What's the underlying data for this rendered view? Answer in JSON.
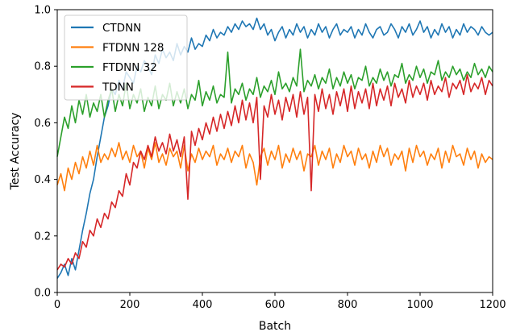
{
  "chart_data": {
    "type": "line",
    "xlabel": "Batch",
    "ylabel": "Test Accuracy",
    "xlim": [
      0,
      1200
    ],
    "ylim": [
      0.0,
      1.0
    ],
    "xticks": [
      0,
      200,
      400,
      600,
      800,
      1000,
      1200
    ],
    "xtick_labels": [
      "0",
      "200",
      "400",
      "600",
      "800",
      "1000",
      "1200"
    ],
    "yticks": [
      0.0,
      0.2,
      0.4,
      0.6,
      0.8,
      1.0
    ],
    "ytick_labels": [
      "0.0",
      "0.2",
      "0.4",
      "0.6",
      "0.8",
      "1.0"
    ],
    "grid": false,
    "legend_position": "top-left",
    "series": [
      {
        "name": "CTDNN",
        "color": "#1f77b4",
        "x": [
          0,
          10,
          20,
          30,
          40,
          50,
          60,
          70,
          80,
          90,
          100,
          110,
          120,
          130,
          140,
          150,
          160,
          170,
          180,
          190,
          200,
          210,
          220,
          230,
          240,
          250,
          260,
          270,
          280,
          290,
          300,
          310,
          320,
          330,
          340,
          350,
          360,
          370,
          380,
          390,
          400,
          410,
          420,
          430,
          440,
          450,
          460,
          470,
          480,
          490,
          500,
          510,
          520,
          530,
          540,
          550,
          560,
          570,
          580,
          590,
          600,
          610,
          620,
          630,
          640,
          650,
          660,
          670,
          680,
          690,
          700,
          710,
          720,
          730,
          740,
          750,
          760,
          770,
          780,
          790,
          800,
          810,
          820,
          830,
          840,
          850,
          860,
          870,
          880,
          890,
          900,
          910,
          920,
          930,
          940,
          950,
          960,
          970,
          980,
          990,
          1000,
          1010,
          1020,
          1030,
          1040,
          1050,
          1060,
          1070,
          1080,
          1090,
          1100,
          1110,
          1120,
          1130,
          1140,
          1150,
          1160,
          1170,
          1180,
          1190,
          1200
        ],
        "y": [
          0.05,
          0.07,
          0.1,
          0.06,
          0.12,
          0.08,
          0.15,
          0.22,
          0.28,
          0.35,
          0.4,
          0.48,
          0.55,
          0.62,
          0.66,
          0.72,
          0.7,
          0.75,
          0.72,
          0.78,
          0.76,
          0.74,
          0.8,
          0.78,
          0.82,
          0.8,
          0.77,
          0.84,
          0.81,
          0.86,
          0.83,
          0.85,
          0.82,
          0.88,
          0.84,
          0.87,
          0.85,
          0.9,
          0.86,
          0.88,
          0.87,
          0.91,
          0.89,
          0.93,
          0.9,
          0.92,
          0.91,
          0.94,
          0.92,
          0.95,
          0.93,
          0.96,
          0.94,
          0.95,
          0.93,
          0.97,
          0.93,
          0.95,
          0.91,
          0.93,
          0.89,
          0.92,
          0.94,
          0.9,
          0.93,
          0.91,
          0.95,
          0.92,
          0.94,
          0.9,
          0.93,
          0.91,
          0.95,
          0.92,
          0.94,
          0.9,
          0.93,
          0.95,
          0.91,
          0.93,
          0.92,
          0.94,
          0.9,
          0.93,
          0.91,
          0.95,
          0.92,
          0.9,
          0.93,
          0.94,
          0.91,
          0.92,
          0.95,
          0.93,
          0.9,
          0.94,
          0.92,
          0.95,
          0.91,
          0.93,
          0.96,
          0.92,
          0.94,
          0.9,
          0.93,
          0.91,
          0.95,
          0.92,
          0.94,
          0.9,
          0.93,
          0.91,
          0.95,
          0.92,
          0.94,
          0.93,
          0.91,
          0.94,
          0.92,
          0.91,
          0.92
        ]
      },
      {
        "name": "FTDNN 128",
        "color": "#ff7f0e",
        "x": [
          0,
          10,
          20,
          30,
          40,
          50,
          60,
          70,
          80,
          90,
          100,
          110,
          120,
          130,
          140,
          150,
          160,
          170,
          180,
          190,
          200,
          210,
          220,
          230,
          240,
          250,
          260,
          270,
          280,
          290,
          300,
          310,
          320,
          330,
          340,
          350,
          360,
          370,
          380,
          390,
          400,
          410,
          420,
          430,
          440,
          450,
          460,
          470,
          480,
          490,
          500,
          510,
          520,
          530,
          540,
          550,
          560,
          570,
          580,
          590,
          600,
          610,
          620,
          630,
          640,
          650,
          660,
          670,
          680,
          690,
          700,
          710,
          720,
          730,
          740,
          750,
          760,
          770,
          780,
          790,
          800,
          810,
          820,
          830,
          840,
          850,
          860,
          870,
          880,
          890,
          900,
          910,
          920,
          930,
          940,
          950,
          960,
          970,
          980,
          990,
          1000,
          1010,
          1020,
          1030,
          1040,
          1050,
          1060,
          1070,
          1080,
          1090,
          1100,
          1110,
          1120,
          1130,
          1140,
          1150,
          1160,
          1170,
          1180,
          1190,
          1200
        ],
        "y": [
          0.38,
          0.42,
          0.36,
          0.44,
          0.4,
          0.46,
          0.42,
          0.48,
          0.44,
          0.5,
          0.45,
          0.52,
          0.46,
          0.49,
          0.47,
          0.51,
          0.48,
          0.53,
          0.47,
          0.5,
          0.46,
          0.52,
          0.48,
          0.5,
          0.44,
          0.51,
          0.47,
          0.53,
          0.46,
          0.49,
          0.45,
          0.51,
          0.48,
          0.5,
          0.44,
          0.52,
          0.43,
          0.49,
          0.46,
          0.51,
          0.47,
          0.5,
          0.48,
          0.52,
          0.45,
          0.49,
          0.47,
          0.51,
          0.46,
          0.5,
          0.48,
          0.52,
          0.44,
          0.49,
          0.46,
          0.38,
          0.48,
          0.51,
          0.45,
          0.5,
          0.47,
          0.52,
          0.44,
          0.49,
          0.46,
          0.51,
          0.47,
          0.5,
          0.43,
          0.49,
          0.48,
          0.52,
          0.45,
          0.5,
          0.47,
          0.51,
          0.44,
          0.49,
          0.46,
          0.52,
          0.48,
          0.5,
          0.45,
          0.51,
          0.47,
          0.49,
          0.44,
          0.5,
          0.46,
          0.52,
          0.48,
          0.51,
          0.45,
          0.49,
          0.47,
          0.5,
          0.43,
          0.51,
          0.46,
          0.52,
          0.48,
          0.5,
          0.45,
          0.49,
          0.47,
          0.51,
          0.44,
          0.5,
          0.46,
          0.52,
          0.48,
          0.49,
          0.45,
          0.51,
          0.47,
          0.5,
          0.44,
          0.49,
          0.46,
          0.48,
          0.47
        ]
      },
      {
        "name": "FTDNN 32",
        "color": "#2ca02c",
        "x": [
          0,
          10,
          20,
          30,
          40,
          50,
          60,
          70,
          80,
          90,
          100,
          110,
          120,
          130,
          140,
          150,
          160,
          170,
          180,
          190,
          200,
          210,
          220,
          230,
          240,
          250,
          260,
          270,
          280,
          290,
          300,
          310,
          320,
          330,
          340,
          350,
          360,
          370,
          380,
          390,
          400,
          410,
          420,
          430,
          440,
          450,
          460,
          470,
          480,
          490,
          500,
          510,
          520,
          530,
          540,
          550,
          560,
          570,
          580,
          590,
          600,
          610,
          620,
          630,
          640,
          650,
          660,
          670,
          680,
          690,
          700,
          710,
          720,
          730,
          740,
          750,
          760,
          770,
          780,
          790,
          800,
          810,
          820,
          830,
          840,
          850,
          860,
          870,
          880,
          890,
          900,
          910,
          920,
          930,
          940,
          950,
          960,
          970,
          980,
          990,
          1000,
          1010,
          1020,
          1030,
          1040,
          1050,
          1060,
          1070,
          1080,
          1090,
          1100,
          1110,
          1120,
          1130,
          1140,
          1150,
          1160,
          1170,
          1180,
          1190,
          1200
        ],
        "y": [
          0.48,
          0.55,
          0.62,
          0.58,
          0.66,
          0.6,
          0.68,
          0.63,
          0.7,
          0.62,
          0.67,
          0.64,
          0.7,
          0.62,
          0.68,
          0.72,
          0.64,
          0.7,
          0.66,
          0.74,
          0.65,
          0.7,
          0.67,
          0.72,
          0.64,
          0.69,
          0.66,
          0.73,
          0.65,
          0.7,
          0.68,
          0.74,
          0.66,
          0.71,
          0.67,
          0.72,
          0.65,
          0.7,
          0.68,
          0.75,
          0.66,
          0.71,
          0.68,
          0.73,
          0.67,
          0.7,
          0.69,
          0.85,
          0.67,
          0.72,
          0.7,
          0.74,
          0.68,
          0.72,
          0.7,
          0.76,
          0.69,
          0.73,
          0.71,
          0.75,
          0.7,
          0.78,
          0.72,
          0.74,
          0.71,
          0.76,
          0.73,
          0.86,
          0.71,
          0.75,
          0.73,
          0.77,
          0.72,
          0.76,
          0.74,
          0.79,
          0.72,
          0.76,
          0.73,
          0.78,
          0.74,
          0.77,
          0.72,
          0.76,
          0.75,
          0.8,
          0.73,
          0.76,
          0.74,
          0.79,
          0.75,
          0.78,
          0.73,
          0.77,
          0.76,
          0.81,
          0.74,
          0.77,
          0.75,
          0.8,
          0.76,
          0.79,
          0.74,
          0.78,
          0.77,
          0.82,
          0.75,
          0.78,
          0.76,
          0.8,
          0.77,
          0.79,
          0.75,
          0.78,
          0.76,
          0.81,
          0.77,
          0.79,
          0.76,
          0.8,
          0.78
        ]
      },
      {
        "name": "TDNN",
        "color": "#d62728",
        "x": [
          0,
          10,
          20,
          30,
          40,
          50,
          60,
          70,
          80,
          90,
          100,
          110,
          120,
          130,
          140,
          150,
          160,
          170,
          180,
          190,
          200,
          210,
          220,
          230,
          240,
          250,
          260,
          270,
          280,
          290,
          300,
          310,
          320,
          330,
          340,
          350,
          360,
          370,
          380,
          390,
          400,
          410,
          420,
          430,
          440,
          450,
          460,
          470,
          480,
          490,
          500,
          510,
          520,
          530,
          540,
          550,
          560,
          570,
          580,
          590,
          600,
          610,
          620,
          630,
          640,
          650,
          660,
          670,
          680,
          690,
          700,
          710,
          720,
          730,
          740,
          750,
          760,
          770,
          780,
          790,
          800,
          810,
          820,
          830,
          840,
          850,
          860,
          870,
          880,
          890,
          900,
          910,
          920,
          930,
          940,
          950,
          960,
          970,
          980,
          990,
          1000,
          1010,
          1020,
          1030,
          1040,
          1050,
          1060,
          1070,
          1080,
          1090,
          1100,
          1110,
          1120,
          1130,
          1140,
          1150,
          1160,
          1170,
          1180,
          1190,
          1200
        ],
        "y": [
          0.08,
          0.1,
          0.09,
          0.12,
          0.1,
          0.14,
          0.12,
          0.18,
          0.16,
          0.22,
          0.2,
          0.26,
          0.23,
          0.28,
          0.26,
          0.32,
          0.3,
          0.36,
          0.34,
          0.42,
          0.38,
          0.46,
          0.44,
          0.5,
          0.47,
          0.52,
          0.48,
          0.55,
          0.5,
          0.53,
          0.49,
          0.56,
          0.5,
          0.54,
          0.48,
          0.55,
          0.33,
          0.57,
          0.52,
          0.58,
          0.54,
          0.6,
          0.56,
          0.62,
          0.57,
          0.63,
          0.58,
          0.64,
          0.59,
          0.66,
          0.6,
          0.68,
          0.61,
          0.67,
          0.6,
          0.69,
          0.4,
          0.66,
          0.62,
          0.7,
          0.63,
          0.68,
          0.61,
          0.69,
          0.64,
          0.7,
          0.62,
          0.71,
          0.63,
          0.69,
          0.36,
          0.7,
          0.64,
          0.72,
          0.65,
          0.7,
          0.63,
          0.71,
          0.66,
          0.72,
          0.64,
          0.73,
          0.65,
          0.71,
          0.67,
          0.72,
          0.65,
          0.74,
          0.66,
          0.72,
          0.68,
          0.73,
          0.66,
          0.74,
          0.69,
          0.72,
          0.67,
          0.75,
          0.69,
          0.73,
          0.7,
          0.74,
          0.68,
          0.75,
          0.7,
          0.73,
          0.71,
          0.76,
          0.69,
          0.74,
          0.72,
          0.75,
          0.7,
          0.77,
          0.71,
          0.74,
          0.72,
          0.76,
          0.7,
          0.75,
          0.73
        ]
      }
    ]
  }
}
